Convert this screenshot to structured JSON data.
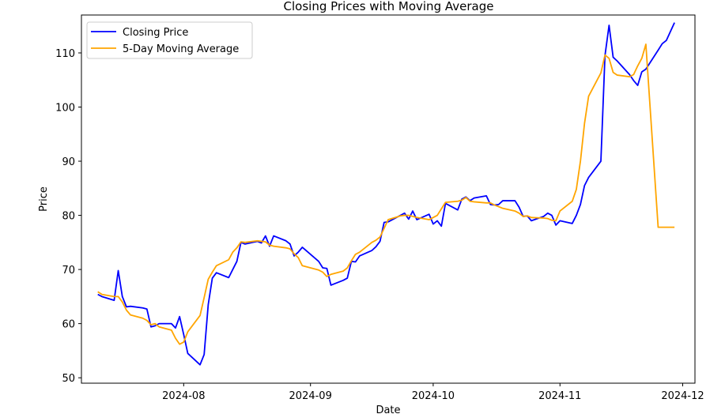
{
  "chart_data": {
    "type": "line",
    "title": "Closing Prices with Moving Average",
    "xlabel": "Date",
    "ylabel": "Price",
    "xlim": [
      "2024-07-07",
      "2024-12-04"
    ],
    "ylim": [
      49,
      117
    ],
    "x_ticks": [
      "2024-08-01",
      "2024-09-01",
      "2024-10-01",
      "2024-11-01",
      "2024-12-01"
    ],
    "x_tick_labels": [
      "2024-08",
      "2024-09",
      "2024-10",
      "2024-11",
      "2024-12"
    ],
    "y_ticks": [
      50,
      60,
      70,
      80,
      90,
      100,
      110
    ],
    "grid": false,
    "legend": "top-left",
    "colors": {
      "close": "#0000ff",
      "ma": "#ffa500"
    },
    "series": [
      {
        "name": "Closing Price",
        "color": "#0000ff",
        "points": [
          [
            "2024-07-11",
            65.4
          ],
          [
            "2024-07-12",
            65.0
          ],
          [
            "2024-07-15",
            64.3
          ],
          [
            "2024-07-16",
            69.8
          ],
          [
            "2024-07-17",
            65.0
          ],
          [
            "2024-07-18",
            63.1
          ],
          [
            "2024-07-19",
            63.2
          ],
          [
            "2024-07-22",
            62.9
          ],
          [
            "2024-07-23",
            62.7
          ],
          [
            "2024-07-24",
            59.4
          ],
          [
            "2024-07-25",
            59.6
          ],
          [
            "2024-07-26",
            60.0
          ],
          [
            "2024-07-29",
            60.0
          ],
          [
            "2024-07-30",
            59.2
          ],
          [
            "2024-07-31",
            61.3
          ],
          [
            "2024-08-01",
            58.0
          ],
          [
            "2024-08-02",
            54.5
          ],
          [
            "2024-08-05",
            52.4
          ],
          [
            "2024-08-06",
            54.3
          ],
          [
            "2024-08-07",
            63.5
          ],
          [
            "2024-08-08",
            68.4
          ],
          [
            "2024-08-09",
            69.4
          ],
          [
            "2024-08-12",
            68.5
          ],
          [
            "2024-08-13",
            70.0
          ],
          [
            "2024-08-14",
            71.5
          ],
          [
            "2024-08-15",
            75.0
          ],
          [
            "2024-08-16",
            74.7
          ],
          [
            "2024-08-19",
            75.2
          ],
          [
            "2024-08-20",
            74.9
          ],
          [
            "2024-08-21",
            76.2
          ],
          [
            "2024-08-22",
            74.3
          ],
          [
            "2024-08-23",
            76.2
          ],
          [
            "2024-08-26",
            75.3
          ],
          [
            "2024-08-27",
            74.7
          ],
          [
            "2024-08-28",
            72.5
          ],
          [
            "2024-08-29",
            73.2
          ],
          [
            "2024-08-30",
            74.1
          ],
          [
            "2024-09-03",
            71.5
          ],
          [
            "2024-09-04",
            70.3
          ],
          [
            "2024-09-05",
            70.2
          ],
          [
            "2024-09-06",
            67.1
          ],
          [
            "2024-09-09",
            68.0
          ],
          [
            "2024-09-10",
            68.4
          ],
          [
            "2024-09-11",
            71.5
          ],
          [
            "2024-09-12",
            71.4
          ],
          [
            "2024-09-13",
            72.5
          ],
          [
            "2024-09-16",
            73.5
          ],
          [
            "2024-09-17",
            74.2
          ],
          [
            "2024-09-18",
            75.2
          ],
          [
            "2024-09-19",
            78.7
          ],
          [
            "2024-09-20",
            78.8
          ],
          [
            "2024-09-23",
            80.0
          ],
          [
            "2024-09-24",
            80.4
          ],
          [
            "2024-09-25",
            79.3
          ],
          [
            "2024-09-26",
            80.8
          ],
          [
            "2024-09-27",
            79.2
          ],
          [
            "2024-09-30",
            80.2
          ],
          [
            "2024-10-01",
            78.4
          ],
          [
            "2024-10-02",
            79.0
          ],
          [
            "2024-10-03",
            78.0
          ],
          [
            "2024-10-04",
            82.2
          ],
          [
            "2024-10-07",
            81.0
          ],
          [
            "2024-10-08",
            83.0
          ],
          [
            "2024-10-09",
            83.4
          ],
          [
            "2024-10-10",
            82.7
          ],
          [
            "2024-10-11",
            83.2
          ],
          [
            "2024-10-14",
            83.6
          ],
          [
            "2024-10-15",
            82.0
          ],
          [
            "2024-10-16",
            81.9
          ],
          [
            "2024-10-17",
            82.0
          ],
          [
            "2024-10-18",
            82.7
          ],
          [
            "2024-10-21",
            82.7
          ],
          [
            "2024-10-22",
            81.5
          ],
          [
            "2024-10-23",
            79.8
          ],
          [
            "2024-10-24",
            79.9
          ],
          [
            "2024-10-25",
            79.0
          ],
          [
            "2024-10-28",
            79.8
          ],
          [
            "2024-10-29",
            80.4
          ],
          [
            "2024-10-30",
            80.0
          ],
          [
            "2024-10-31",
            78.2
          ],
          [
            "2024-11-01",
            79.0
          ],
          [
            "2024-11-04",
            78.5
          ],
          [
            "2024-11-05",
            80.0
          ],
          [
            "2024-11-06",
            82.0
          ],
          [
            "2024-11-07",
            85.5
          ],
          [
            "2024-11-08",
            87.0
          ],
          [
            "2024-11-11",
            90.0
          ],
          [
            "2024-11-12",
            109.5
          ],
          [
            "2024-11-13",
            115.1
          ],
          [
            "2024-11-14",
            109.2
          ],
          [
            "2024-11-15",
            108.5
          ],
          [
            "2024-11-18",
            106.0
          ],
          [
            "2024-11-19",
            104.9
          ],
          [
            "2024-11-20",
            104.0
          ],
          [
            "2024-11-21",
            106.5
          ],
          [
            "2024-11-22",
            107.0
          ],
          [
            "2024-11-25",
            110.5
          ],
          [
            "2024-11-26",
            111.7
          ],
          [
            "2024-11-27",
            112.3
          ],
          [
            "2024-11-29",
            115.6
          ]
        ]
      },
      {
        "name": "5-Day Moving Average",
        "color": "#ffa500",
        "points": [
          [
            "2024-07-11",
            65.9
          ],
          [
            "2024-07-12",
            65.4
          ],
          [
            "2024-07-15",
            65.0
          ],
          [
            "2024-07-16",
            65.0
          ],
          [
            "2024-07-17",
            64.0
          ],
          [
            "2024-07-18",
            62.5
          ],
          [
            "2024-07-19",
            61.6
          ],
          [
            "2024-07-22",
            61.0
          ],
          [
            "2024-07-23",
            60.6
          ],
          [
            "2024-07-24",
            59.8
          ],
          [
            "2024-07-25",
            60.0
          ],
          [
            "2024-07-26",
            59.4
          ],
          [
            "2024-07-29",
            58.8
          ],
          [
            "2024-07-30",
            57.3
          ],
          [
            "2024-07-31",
            56.2
          ],
          [
            "2024-08-01",
            56.6
          ],
          [
            "2024-08-02",
            58.5
          ],
          [
            "2024-08-05",
            61.5
          ],
          [
            "2024-08-06",
            64.8
          ],
          [
            "2024-08-07",
            68.2
          ],
          [
            "2024-08-08",
            69.5
          ],
          [
            "2024-08-09",
            70.7
          ],
          [
            "2024-08-12",
            71.8
          ],
          [
            "2024-08-13",
            73.2
          ],
          [
            "2024-08-14",
            74.0
          ],
          [
            "2024-08-15",
            75.1
          ],
          [
            "2024-08-16",
            75.0
          ],
          [
            "2024-08-19",
            75.3
          ],
          [
            "2024-08-20",
            75.2
          ],
          [
            "2024-08-21",
            75.1
          ],
          [
            "2024-08-22",
            74.5
          ],
          [
            "2024-08-23",
            74.3
          ],
          [
            "2024-08-26",
            74.0
          ],
          [
            "2024-08-27",
            73.8
          ],
          [
            "2024-08-28",
            72.9
          ],
          [
            "2024-08-29",
            72.2
          ],
          [
            "2024-08-30",
            70.7
          ],
          [
            "2024-09-03",
            69.9
          ],
          [
            "2024-09-04",
            69.5
          ],
          [
            "2024-09-05",
            68.7
          ],
          [
            "2024-09-06",
            69.1
          ],
          [
            "2024-09-09",
            69.7
          ],
          [
            "2024-09-10",
            70.3
          ],
          [
            "2024-09-11",
            71.6
          ],
          [
            "2024-09-12",
            72.8
          ],
          [
            "2024-09-13",
            73.2
          ],
          [
            "2024-09-16",
            75.0
          ],
          [
            "2024-09-17",
            75.4
          ],
          [
            "2024-09-18",
            76.0
          ],
          [
            "2024-09-19",
            77.6
          ],
          [
            "2024-09-20",
            79.2
          ],
          [
            "2024-09-23",
            79.9
          ],
          [
            "2024-09-24",
            80.0
          ],
          [
            "2024-09-25",
            80.0
          ],
          [
            "2024-09-26",
            79.8
          ],
          [
            "2024-09-27",
            79.6
          ],
          [
            "2024-09-30",
            79.2
          ],
          [
            "2024-10-01",
            79.6
          ],
          [
            "2024-10-02",
            80.0
          ],
          [
            "2024-10-03",
            81.2
          ],
          [
            "2024-10-04",
            82.4
          ],
          [
            "2024-10-07",
            82.6
          ],
          [
            "2024-10-08",
            82.8
          ],
          [
            "2024-10-09",
            83.3
          ],
          [
            "2024-10-10",
            82.6
          ],
          [
            "2024-10-11",
            82.5
          ],
          [
            "2024-10-14",
            82.3
          ],
          [
            "2024-10-15",
            82.3
          ],
          [
            "2024-10-16",
            81.9
          ],
          [
            "2024-10-17",
            81.6
          ],
          [
            "2024-10-18",
            81.3
          ],
          [
            "2024-10-21",
            80.8
          ],
          [
            "2024-10-22",
            80.4
          ],
          [
            "2024-10-23",
            79.8
          ],
          [
            "2024-10-24",
            79.9
          ],
          [
            "2024-10-25",
            79.6
          ],
          [
            "2024-10-28",
            79.5
          ],
          [
            "2024-10-29",
            79.4
          ],
          [
            "2024-10-30",
            79.1
          ],
          [
            "2024-10-31",
            79.0
          ],
          [
            "2024-11-01",
            80.8
          ],
          [
            "2024-11-04",
            82.6
          ],
          [
            "2024-11-05",
            84.8
          ],
          [
            "2024-11-06",
            90.0
          ],
          [
            "2024-11-07",
            97.0
          ],
          [
            "2024-11-08",
            102.0
          ],
          [
            "2024-11-11",
            106.3
          ],
          [
            "2024-11-12",
            109.6
          ],
          [
            "2024-11-13",
            109.0
          ],
          [
            "2024-11-14",
            106.4
          ],
          [
            "2024-11-15",
            105.9
          ],
          [
            "2024-11-18",
            105.6
          ],
          [
            "2024-11-19",
            106.0
          ],
          [
            "2024-11-20",
            107.6
          ],
          [
            "2024-11-21",
            109.0
          ],
          [
            "2024-11-22",
            111.6
          ],
          [
            "2024-11-25",
            77.8
          ],
          [
            "2024-11-26",
            77.8
          ],
          [
            "2024-11-27",
            77.8
          ],
          [
            "2024-11-29",
            77.8
          ]
        ]
      }
    ]
  }
}
